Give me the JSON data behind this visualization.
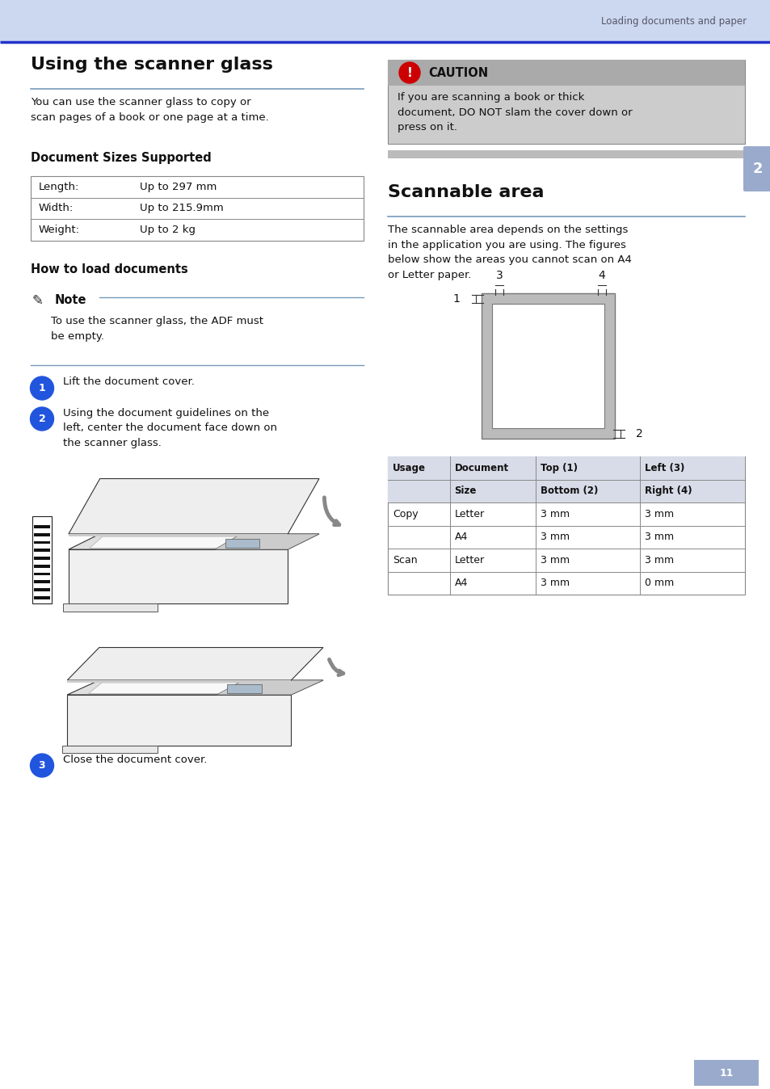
{
  "bg_color": "#ffffff",
  "header_color": "#ccd8f0",
  "header_line_color": "#2233cc",
  "blue_line_color": "#7799bb",
  "page_width": 9.54,
  "page_height": 13.48,
  "header_text": "Loading documents and paper",
  "title_left": "Using the scanner glass",
  "title_right": "Scannable area",
  "subtitle1": "Document Sizes Supported",
  "subtitle2": "How to load documents",
  "body_text1": "You can use the scanner glass to copy or\nscan pages of a book or one page at a time.",
  "doc_sizes": [
    [
      "Length:",
      "Up to 297 mm"
    ],
    [
      "Width:",
      "Up to 215.9mm"
    ],
    [
      "Weight:",
      "Up to 2 kg"
    ]
  ],
  "note_text": "To use the scanner glass, the ADF must\nbe empty.",
  "step1": "Lift the document cover.",
  "step2": "Using the document guidelines on the\nleft, center the document face down on\nthe scanner glass.",
  "step3": "Close the document cover.",
  "caution_title": "CAUTION",
  "caution_text": "If you are scanning a book or thick\ndocument, DO NOT slam the cover down or\npress on it.",
  "scannable_text": "The scannable area depends on the settings\nin the application you are using. The figures\nbelow show the areas you cannot scan on A4\nor Letter paper.",
  "table_data": [
    [
      "Copy",
      "Letter",
      "3 mm",
      "3 mm"
    ],
    [
      "",
      "A4",
      "3 mm",
      "3 mm"
    ],
    [
      "Scan",
      "Letter",
      "3 mm",
      "3 mm"
    ],
    [
      "",
      "A4",
      "3 mm",
      "0 mm"
    ]
  ],
  "page_number": "11",
  "tab_color": "#99aacc",
  "tab_number": "2",
  "caution_header_color": "#aaaaaa",
  "caution_body_color": "#cccccc",
  "caution_icon_color": "#cc0000"
}
